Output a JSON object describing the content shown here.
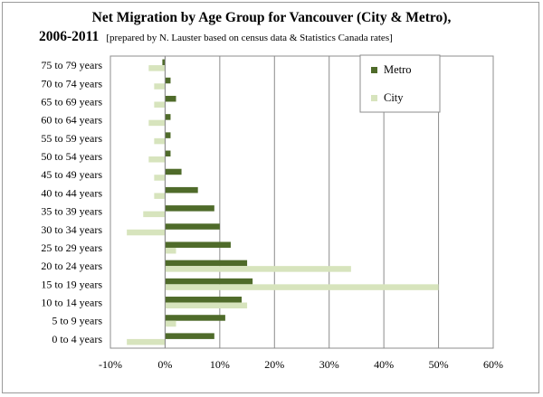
{
  "chart_data": {
    "type": "bar",
    "orientation": "horizontal",
    "title": "Net Migration by Age Group for Vancouver (City & Metro),",
    "title_line2": "2006-2011",
    "subtitle": "[prepared by N. Lauster based on census data & Statistics Canada rates]",
    "categories": [
      "0 to 4 years",
      "5 to 9 years",
      "10 to 14 years",
      "15 to 19 years",
      "20 to 24 years",
      "25 to 29 years",
      "30 to 34 years",
      "35 to 39 years",
      "40 to 44 years",
      "45 to 49 years",
      "50 to 54 years",
      "55 to 59 years",
      "60 to 64 years",
      "65 to 69 years",
      "70 to 74 years",
      "75 to 79 years"
    ],
    "series": [
      {
        "name": "Metro",
        "color": "#4f6b2a",
        "values": [
          9,
          11,
          14,
          16,
          15,
          12,
          10,
          9,
          6,
          3,
          1,
          1,
          1,
          2,
          1,
          -0.5
        ]
      },
      {
        "name": "City",
        "color": "#d7e4bd",
        "values": [
          -7,
          2,
          15,
          50,
          34,
          2,
          -7,
          -4,
          -2,
          -2,
          -3,
          -2,
          -3,
          -2,
          -2,
          -3
        ]
      }
    ],
    "xlim": [
      -10,
      60
    ],
    "xticks": [
      "-10%",
      "0%",
      "10%",
      "20%",
      "30%",
      "40%",
      "50%",
      "60%"
    ],
    "xtick_values": [
      -10,
      0,
      10,
      20,
      30,
      40,
      50,
      60
    ],
    "grid": "vertical",
    "legend_position": "top-right"
  }
}
